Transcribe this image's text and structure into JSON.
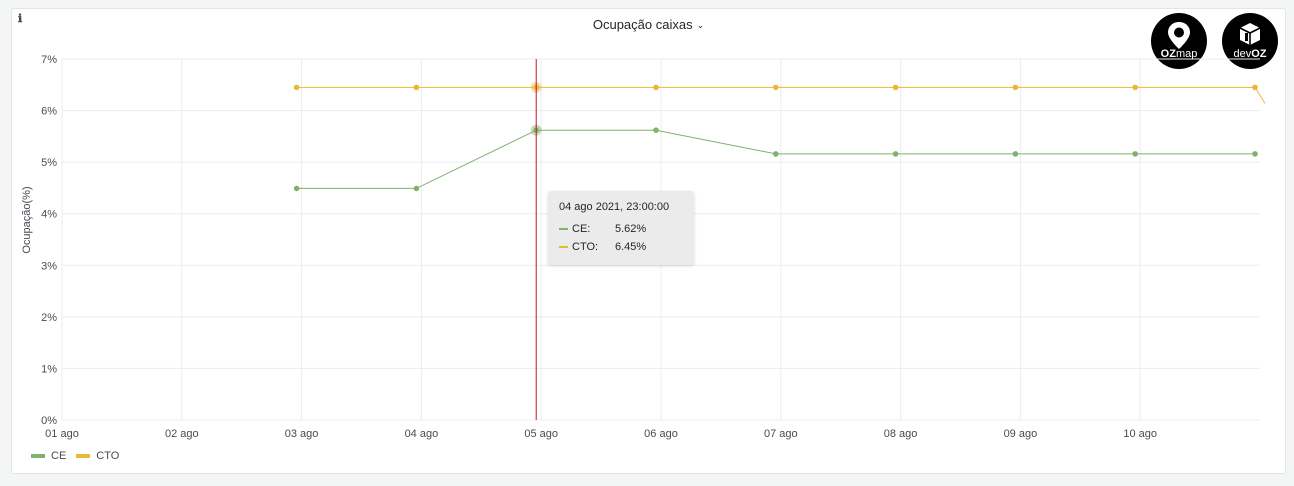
{
  "panel": {
    "title": "Ocupação caixas",
    "info_icon": "ℹ"
  },
  "logos": {
    "ozmap": {
      "icon": "map-pin-icon",
      "text_bold": "OZ",
      "text_light": "map"
    },
    "devoz": {
      "icon": "cube-icon",
      "text_light": "dev",
      "text_bold": "OZ"
    }
  },
  "colors": {
    "CE": "#7eb26d",
    "CTO": "#eab839",
    "cursor": "#c4162a"
  },
  "chart_data": {
    "type": "line",
    "title": "Ocupação caixas",
    "xlabel": "",
    "ylabel": "Ocupação(%)",
    "ylim": [
      0,
      7
    ],
    "yticks": [
      "0%",
      "1%",
      "2%",
      "3%",
      "4%",
      "5%",
      "6%",
      "7%"
    ],
    "xlim": [
      "2021-08-01",
      "2021-08-11"
    ],
    "xticks": [
      "01 ago",
      "02 ago",
      "03 ago",
      "04 ago",
      "05 ago",
      "06 ago",
      "07 ago",
      "08 ago",
      "09 ago",
      "10 ago"
    ],
    "grid": true,
    "legend": "bottom-left",
    "x": [
      "2021-08-02 23:00",
      "2021-08-03 23:00",
      "2021-08-04 23:00",
      "2021-08-05 23:00",
      "2021-08-06 23:00",
      "2021-08-07 23:00",
      "2021-08-08 23:00",
      "2021-08-09 23:00",
      "2021-08-10 23:00"
    ],
    "series": [
      {
        "name": "CE",
        "values": [
          4.49,
          4.49,
          5.62,
          5.62,
          5.16,
          5.16,
          5.16,
          5.16,
          5.16
        ]
      },
      {
        "name": "CTO",
        "values": [
          6.45,
          6.45,
          6.45,
          6.45,
          6.45,
          6.45,
          6.45,
          6.45,
          6.45
        ]
      }
    ],
    "hover": {
      "x": "2021-08-04 23:00",
      "label": "04 ago 2021, 23:00:00",
      "rows": [
        {
          "name": "CE:",
          "value": "5.62%"
        },
        {
          "name": "CTO:",
          "value": "6.45%"
        }
      ]
    }
  }
}
